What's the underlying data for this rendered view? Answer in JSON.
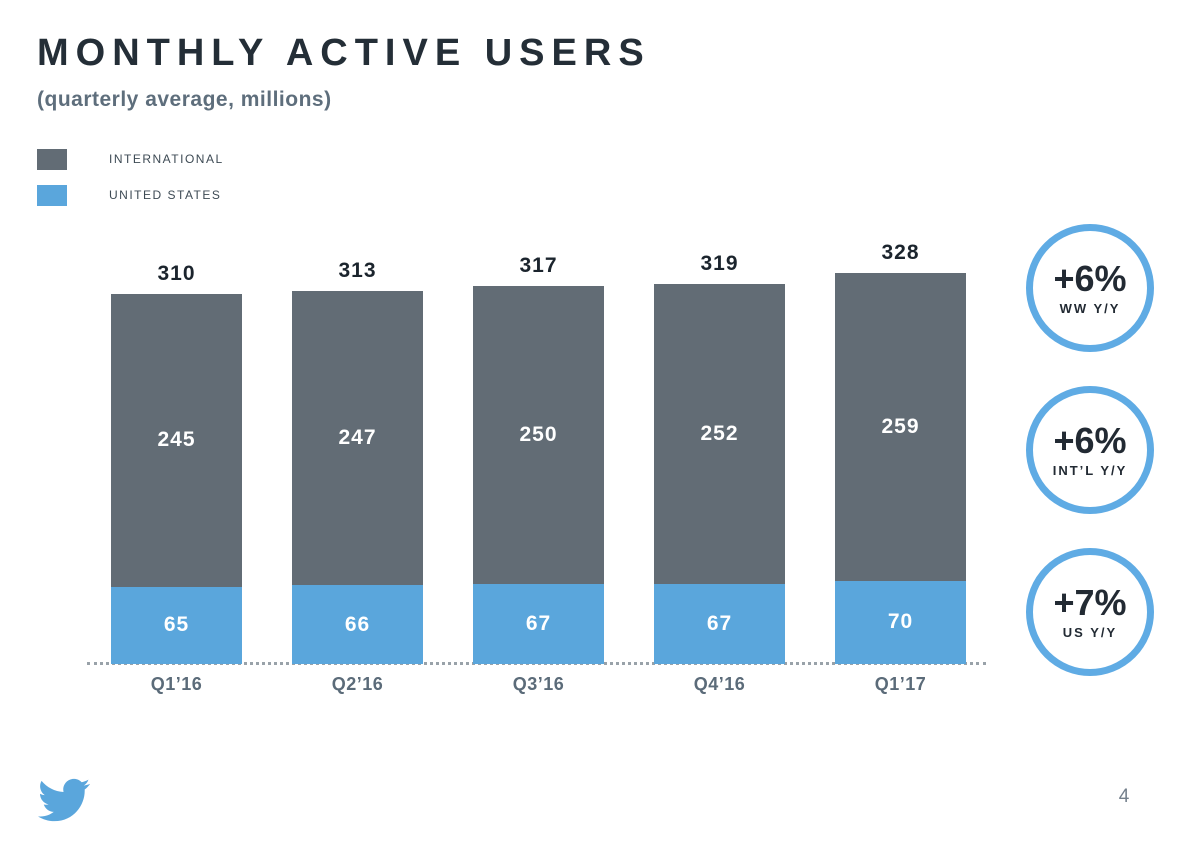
{
  "slide": {
    "title": "MONTHLY ACTIVE USERS",
    "subtitle": "(quarterly average, millions)",
    "page_number": "4"
  },
  "colors": {
    "international": "#626c75",
    "united_states": "#5aa6dc",
    "accent_blue": "#5fabe4",
    "title_text": "#242e37",
    "subtitle_text": "#5e6e7c",
    "bar_value_light": "#ffffff",
    "bar_total_dark": "#1b242d"
  },
  "legend": {
    "items": [
      {
        "label": "INTERNATIONAL",
        "color": "#626c75"
      },
      {
        "label": "UNITED STATES",
        "color": "#5aa6dc"
      }
    ]
  },
  "chart_data": {
    "type": "bar",
    "stacked": true,
    "title": "MONTHLY ACTIVE USERS",
    "subtitle": "(quarterly average, millions)",
    "xlabel": "",
    "ylabel": "",
    "ylim": [
      0,
      340
    ],
    "grid": false,
    "baseline_style": "dotted",
    "legend_position": "top-left",
    "categories": [
      "Q1’16",
      "Q2’16",
      "Q3’16",
      "Q4’16",
      "Q1’17"
    ],
    "series": [
      {
        "name": "UNITED STATES",
        "color": "#5aa6dc",
        "values": [
          65,
          66,
          67,
          67,
          70
        ]
      },
      {
        "name": "INTERNATIONAL",
        "color": "#626c75",
        "values": [
          245,
          247,
          250,
          252,
          259
        ]
      }
    ],
    "totals": [
      310,
      313,
      317,
      319,
      328
    ]
  },
  "badges": [
    {
      "value": "+6%",
      "label": "WW Y/Y"
    },
    {
      "value": "+6%",
      "label": "INT’L Y/Y"
    },
    {
      "value": "+7%",
      "label": "US Y/Y"
    }
  ]
}
